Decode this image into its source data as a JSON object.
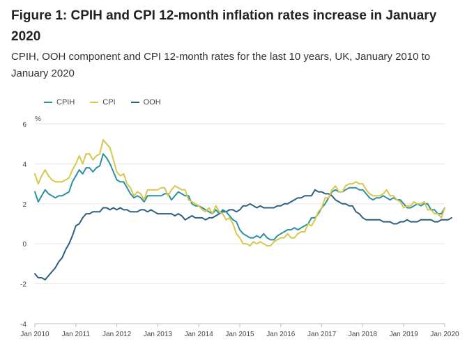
{
  "title": "Figure 1: CPIH and CPI 12-month inflation rates increase in January 2020",
  "subtitle": "CPIH, OOH component and CPI 12-month rates for the last 10 years, UK, January 2010 to January 2020",
  "legend": [
    {
      "name": "CPIH",
      "color": "#2a8fa3"
    },
    {
      "name": "CPI",
      "color": "#d8c64a"
    },
    {
      "name": "OOH",
      "color": "#2c5f80"
    }
  ],
  "chart_data": {
    "type": "line",
    "title": "Figure 1: CPIH and CPI 12-month inflation rates increase in January 2020",
    "subtitle": "CPIH, OOH component and CPI 12-month rates for the last 10 years, UK, January 2010 to January 2020",
    "xlabel": "",
    "ylabel": "%",
    "ylim": [
      -4,
      6
    ],
    "y_ticks": [
      "6",
      "4",
      "2",
      "0",
      "-2",
      "-4"
    ],
    "y_tick_values": [
      6,
      4,
      2,
      0,
      -2,
      -4
    ],
    "x_tick_labels": [
      "Jan 2010",
      "Jan 2011",
      "Jan 2012",
      "Jan 2013",
      "Jan 2014",
      "Jan 2015",
      "Jan 2016",
      "Jan 2017",
      "Jan 2018",
      "Jan 2019",
      "Jan 2020"
    ],
    "x_tick_months": [
      0,
      12,
      24,
      36,
      48,
      60,
      72,
      84,
      96,
      108,
      120
    ],
    "x_unit": "months since Jan 2010",
    "x_range": [
      0,
      120
    ],
    "grid": true,
    "legend_position": "top-left",
    "series": [
      {
        "name": "CPIH",
        "color": "#2a8fa3",
        "values": [
          2.6,
          2.1,
          2.4,
          2.7,
          2.5,
          2.4,
          2.3,
          2.4,
          2.4,
          2.5,
          2.6,
          3.1,
          3.4,
          3.7,
          3.5,
          3.8,
          3.8,
          3.6,
          3.8,
          3.9,
          4.5,
          4.3,
          4.0,
          3.6,
          3.2,
          3.1,
          3.1,
          2.8,
          2.5,
          2.3,
          2.4,
          2.3,
          2.1,
          2.4,
          2.4,
          2.4,
          2.4,
          2.4,
          2.5,
          2.5,
          2.2,
          2.4,
          2.6,
          2.5,
          2.4,
          2.4,
          2.0,
          1.9,
          1.9,
          1.8,
          1.7,
          1.6,
          1.5,
          1.7,
          1.5,
          1.7,
          1.6,
          1.4,
          1.2,
          1.1,
          0.7,
          0.5,
          0.4,
          0.3,
          0.3,
          0.4,
          0.3,
          0.5,
          0.3,
          0.2,
          0.2,
          0.4,
          0.5,
          0.6,
          0.7,
          0.7,
          0.8,
          0.7,
          0.8,
          0.9,
          1.0,
          1.3,
          1.3,
          1.5,
          1.8,
          2.0,
          2.3,
          2.6,
          2.7,
          2.6,
          2.6,
          2.7,
          2.8,
          2.8,
          2.8,
          2.7,
          2.7,
          2.5,
          2.3,
          2.2,
          2.3,
          2.3,
          2.4,
          2.3,
          2.2,
          2.3,
          2.2,
          2.2,
          2.0,
          1.8,
          1.8,
          1.9,
          2.0,
          1.9,
          2.0,
          2.0,
          1.7,
          1.7,
          1.5,
          1.5,
          1.8
        ]
      },
      {
        "name": "CPI",
        "color": "#d8c64a",
        "values": [
          3.5,
          3.0,
          3.4,
          3.7,
          3.4,
          3.2,
          3.1,
          3.1,
          3.1,
          3.2,
          3.3,
          3.7,
          4.0,
          4.4,
          4.0,
          4.5,
          4.5,
          4.2,
          4.4,
          4.5,
          5.2,
          5.0,
          4.8,
          4.2,
          3.6,
          3.4,
          3.5,
          3.0,
          2.8,
          2.4,
          2.6,
          2.5,
          2.2,
          2.7,
          2.7,
          2.7,
          2.7,
          2.8,
          2.8,
          2.4,
          2.7,
          2.9,
          2.8,
          2.7,
          2.7,
          2.2,
          2.1,
          2.0,
          1.9,
          1.7,
          1.6,
          1.8,
          1.5,
          1.9,
          1.6,
          1.5,
          1.2,
          1.3,
          1.0,
          0.5,
          0.3,
          0.0,
          0.0,
          -0.1,
          0.1,
          0.0,
          0.1,
          0.0,
          -0.1,
          -0.1,
          0.1,
          0.2,
          0.3,
          0.3,
          0.5,
          0.3,
          0.3,
          0.5,
          0.6,
          0.6,
          1.0,
          0.9,
          1.2,
          1.6,
          1.8,
          2.3,
          2.3,
          2.7,
          2.9,
          2.6,
          2.6,
          2.9,
          3.0,
          3.0,
          3.1,
          3.0,
          3.0,
          2.7,
          2.5,
          2.4,
          2.4,
          2.4,
          2.5,
          2.7,
          2.4,
          2.4,
          2.2,
          2.1,
          1.8,
          1.9,
          1.9,
          2.1,
          2.0,
          2.0,
          2.1,
          1.7,
          1.7,
          1.5,
          1.5,
          1.3,
          1.8
        ]
      },
      {
        "name": "OOH",
        "color": "#2c5f80",
        "values": [
          -1.5,
          -1.7,
          -1.7,
          -1.8,
          -1.6,
          -1.4,
          -1.2,
          -0.9,
          -0.7,
          -0.3,
          0.0,
          0.4,
          0.9,
          1.0,
          1.3,
          1.5,
          1.5,
          1.6,
          1.6,
          1.6,
          1.8,
          1.8,
          1.7,
          1.8,
          1.7,
          1.8,
          1.7,
          1.7,
          1.6,
          1.6,
          1.6,
          1.7,
          1.7,
          1.6,
          1.7,
          1.6,
          1.5,
          1.5,
          1.5,
          1.5,
          1.5,
          1.4,
          1.5,
          1.4,
          1.2,
          1.3,
          1.4,
          1.3,
          1.3,
          1.3,
          1.2,
          1.3,
          1.3,
          1.4,
          1.5,
          1.6,
          1.6,
          1.7,
          1.7,
          1.6,
          1.7,
          1.9,
          1.9,
          2.0,
          1.9,
          1.8,
          1.9,
          1.8,
          1.8,
          1.8,
          1.8,
          1.9,
          1.9,
          2.0,
          2.0,
          2.1,
          2.2,
          2.3,
          2.3,
          2.4,
          2.4,
          2.4,
          2.7,
          2.6,
          2.6,
          2.5,
          2.5,
          2.4,
          2.2,
          2.1,
          2.0,
          2.0,
          1.9,
          1.9,
          1.6,
          1.5,
          1.3,
          1.2,
          1.2,
          1.2,
          1.2,
          1.2,
          1.1,
          1.1,
          1.1,
          1.0,
          1.0,
          1.1,
          1.1,
          1.2,
          1.1,
          1.1,
          1.1,
          1.2,
          1.2,
          1.2,
          1.2,
          1.1,
          1.1,
          1.2,
          1.2,
          1.2,
          1.3
        ]
      }
    ]
  }
}
